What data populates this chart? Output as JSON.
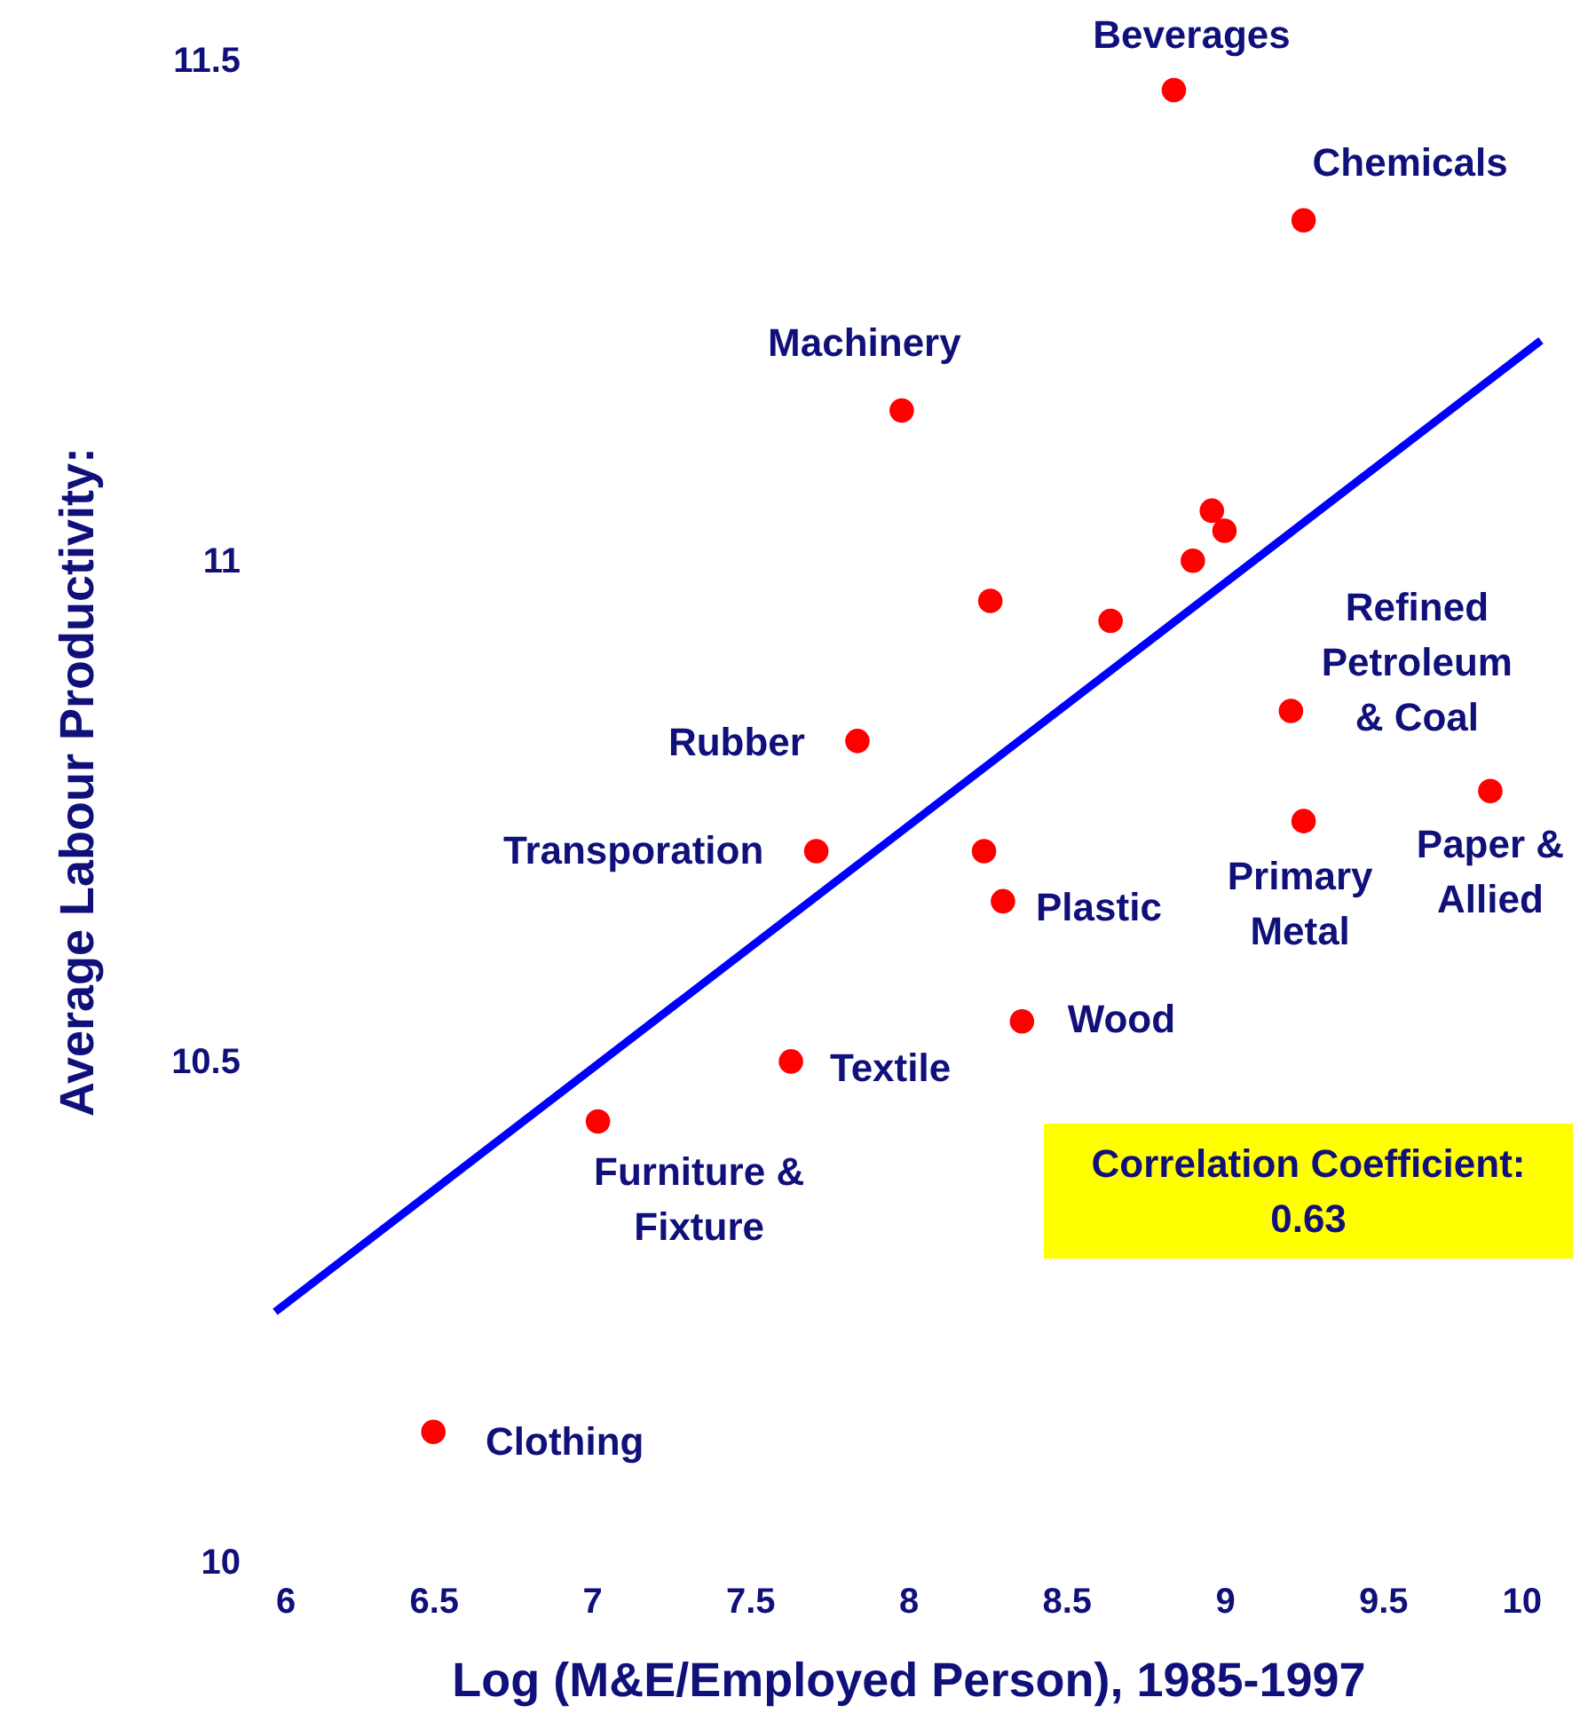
{
  "chart_data": {
    "type": "scatter",
    "xlabel": "Log (M&E/Employed Person), 1985-1997",
    "ylabel": "Average Labour Productivity:",
    "xlim": [
      6,
      10
    ],
    "ylim": [
      10,
      11.56
    ],
    "xticks": [
      6,
      6.5,
      7,
      7.5,
      8,
      8.5,
      9,
      9.5,
      10
    ],
    "yticks": [
      10,
      10.5,
      11,
      11.5
    ],
    "marker": "circle",
    "series": [
      {
        "color": "#ff0000",
        "x": [
          8.84,
          9.25,
          7.98,
          8.96,
          9.0,
          8.9,
          8.26,
          8.64,
          9.21,
          7.84,
          9.84,
          9.25,
          7.71,
          8.24,
          8.3,
          8.36,
          7.63,
          7.02,
          6.5
        ],
        "values": [
          11.47,
          11.34,
          11.15,
          11.05,
          11.03,
          11.0,
          10.96,
          10.94,
          10.85,
          10.82,
          10.77,
          10.74,
          10.71,
          10.71,
          10.66,
          10.54,
          10.5,
          10.44,
          10.13
        ]
      },
      {
        "type": "line",
        "color": "#0000ff",
        "marker": "none",
        "x": [
          6,
          10
        ],
        "values": [
          10.25,
          11.22
        ]
      }
    ],
    "annotations": [
      {
        "text": "Beverages",
        "x": 8.84,
        "y": 11.47
      },
      {
        "text": "Chemicals",
        "x": 9.25,
        "y": 11.34
      },
      {
        "text": "Machinery",
        "x": 7.98,
        "y": 11.15
      },
      {
        "text": "Rubber",
        "x": 7.84,
        "y": 10.82
      },
      {
        "text": "Transporation",
        "x": 7.71,
        "y": 10.71
      },
      {
        "text": "Refined\nPetroleum\n& Coal",
        "x": 9.21,
        "y": 10.85
      },
      {
        "text": "Paper &\nAllied",
        "x": 9.84,
        "y": 10.77
      },
      {
        "text": "Primary\nMetal",
        "x": 9.25,
        "y": 10.74
      },
      {
        "text": "Plastic",
        "x": 8.3,
        "y": 10.66
      },
      {
        "text": "Wood",
        "x": 8.36,
        "y": 10.54
      },
      {
        "text": "Textile",
        "x": 7.63,
        "y": 10.5
      },
      {
        "text": "Furniture &\nFixture",
        "x": 7.02,
        "y": 10.44
      },
      {
        "text": "Clothing",
        "x": 6.5,
        "y": 10.13
      },
      "Correlation Coefficient:\n0.63"
    ]
  }
}
